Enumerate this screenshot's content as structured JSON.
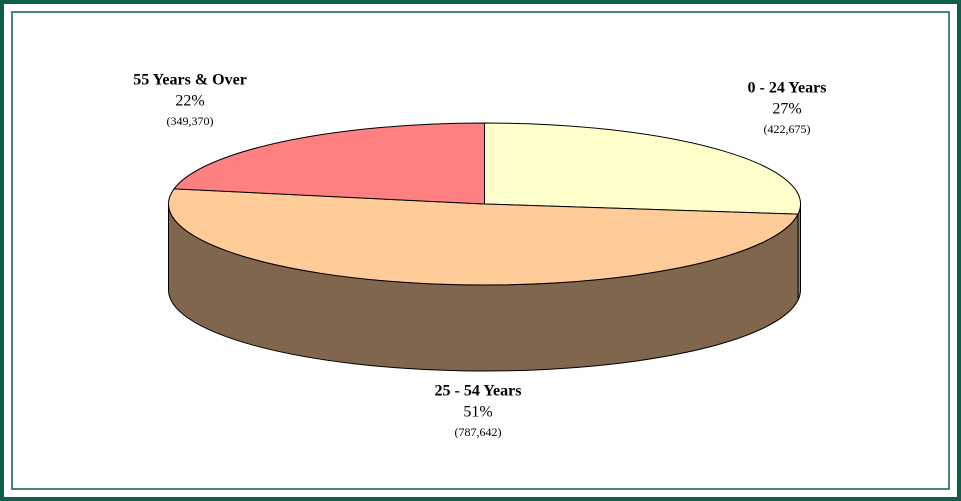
{
  "chart_data": {
    "type": "pie3d",
    "categories": [
      "0 - 24 Years",
      "25 - 54 Years",
      "55 Years & Over"
    ],
    "values": [
      27,
      51,
      22
    ],
    "value_labels": [
      "27%",
      "51%",
      "22%"
    ],
    "counts": [
      422675,
      787642,
      349370
    ],
    "count_labels": [
      "(422,675)",
      "(787,642)",
      "(349,370)"
    ],
    "colors": [
      "#ffffcc",
      "#ffcc99",
      "#ff8080"
    ]
  }
}
